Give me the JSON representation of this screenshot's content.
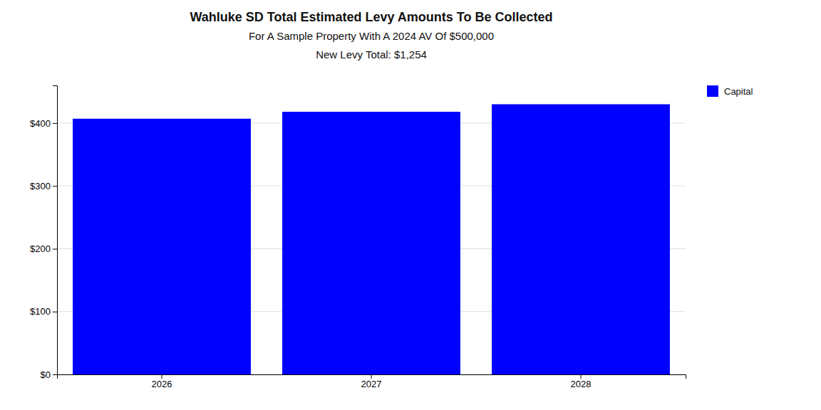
{
  "chart_data": {
    "type": "bar",
    "title": "Wahluke SD Total Estimated Levy Amounts To Be Collected",
    "subtitle": [
      "For A Sample Property With A 2024 AV Of $500,000",
      "New Levy Total: $1,254"
    ],
    "categories": [
      "2026",
      "2027",
      "2028"
    ],
    "series": [
      {
        "name": "Capital",
        "color": "#0000ff",
        "values": [
          407,
          418,
          430
        ]
      }
    ],
    "ylim": [
      0,
      460
    ],
    "yticks": [
      {
        "value": 0,
        "label": "$0"
      },
      {
        "value": 100,
        "label": "$100"
      },
      {
        "value": 200,
        "label": "$200"
      },
      {
        "value": 300,
        "label": "$300"
      },
      {
        "value": 400,
        "label": "$400"
      }
    ],
    "grid": true,
    "legend": "right"
  }
}
